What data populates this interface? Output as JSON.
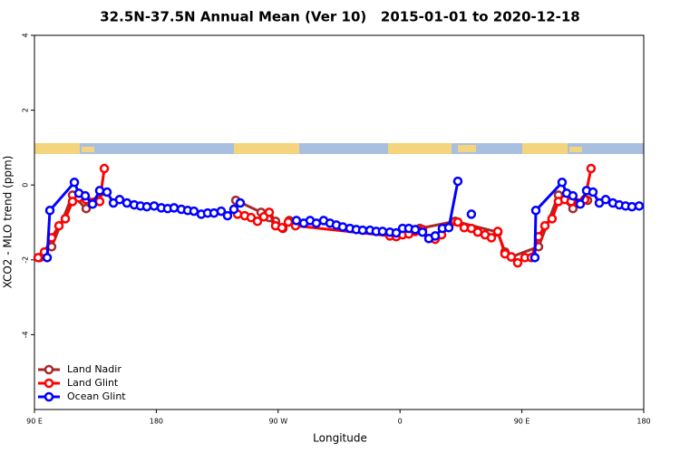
{
  "chart_data": {
    "type": "line",
    "title": "32.5N-37.5N Annual Mean (Ver 10)   2015-01-01 to 2020-12-18",
    "x_label": "Longitude",
    "y_label": "XCO2 - MLO trend (ppm)",
    "xlim": [
      90,
      540
    ],
    "ylim": [
      -6,
      4
    ],
    "xticks": [
      {
        "value": 90,
        "label": "90 E"
      },
      {
        "value": 180,
        "label": "180"
      },
      {
        "value": 270,
        "label": "90 W"
      },
      {
        "value": 360,
        "label": "0"
      },
      {
        "value": 450,
        "label": "90 E"
      },
      {
        "value": 540,
        "label": "180"
      }
    ],
    "yticks": [
      4,
      2,
      0,
      -2,
      -4
    ],
    "legend": "bottomleft",
    "series": [
      {
        "name": "Land Nadir",
        "color": "#a52a2a",
        "x": [
          94.0,
          102.7,
          118.1,
          128.2,
          138.9,
          null,
          238.7,
          257.4,
          263.4,
          268.1,
          273.5,
          278.2,
          null,
          374.6,
          400.7,
          432.2,
          437.5,
          442.2,
          462.3,
          477.0,
          487.7,
          498.5
        ],
        "values": [
          -1.94,
          -1.65,
          -0.27,
          -0.63,
          -0.19,
          null,
          -0.41,
          -0.73,
          -0.87,
          -0.97,
          -1.16,
          -0.95,
          null,
          -1.16,
          -0.97,
          -1.26,
          -1.79,
          -1.92,
          -1.65,
          -0.27,
          -0.63,
          -0.41
        ]
      },
      {
        "name": "Land Glint",
        "color": "#ff0000",
        "x": [
          92.7,
          97.4,
          102.7,
          108.1,
          112.8,
          118.1,
          122.8,
          128.2,
          133.5,
          138.2,
          141.6,
          null,
          240.0,
          245.3,
          250.0,
          254.7,
          259.4,
          263.4,
          268.1,
          272.8,
          277.5,
          282.8,
          352.5,
          357.2,
          361.9,
          366.5,
          371.2,
          376.6,
          381.3,
          386.0,
          390.7,
          396.0,
          402.7,
          407.4,
          412.7,
          417.4,
          422.8,
          427.5,
          432.2,
          437.5,
          442.2,
          446.9,
          452.3,
          457.0,
          462.3,
          467.0,
          472.3,
          477.0,
          481.7,
          486.4,
          491.8,
          496.4,
          501.1
        ],
        "values": [
          -1.94,
          -1.79,
          -1.41,
          -1.09,
          -0.9,
          -0.44,
          -0.34,
          -0.39,
          -0.46,
          -0.44,
          0.44,
          null,
          -0.78,
          -0.82,
          -0.87,
          -0.97,
          -0.85,
          -0.73,
          -1.09,
          -1.14,
          -0.99,
          -1.09,
          -1.36,
          -1.38,
          -1.33,
          -1.31,
          -1.24,
          -1.19,
          -1.43,
          -1.45,
          -1.33,
          -1.12,
          -0.99,
          -1.14,
          -1.16,
          -1.26,
          -1.33,
          -1.41,
          -1.24,
          -1.84,
          -1.92,
          -2.08,
          -1.94,
          -1.94,
          -1.38,
          -1.09,
          -0.9,
          -0.44,
          -0.39,
          -0.44,
          -0.48,
          -0.39,
          0.44
        ]
      },
      {
        "name": "Ocean Glint",
        "color": "#0000ff",
        "x": [
          99.4,
          101.4,
          119.5,
          122.8,
          127.5,
          132.9,
          138.2,
          143.6,
          148.3,
          152.9,
          158.3,
          163.7,
          168.3,
          173.0,
          178.4,
          183.7,
          188.4,
          193.1,
          198.5,
          203.2,
          207.8,
          213.2,
          217.9,
          222.6,
          227.9,
          232.6,
          237.3,
          242.0,
          null,
          283.5,
          288.9,
          293.6,
          298.2,
          303.6,
          308.3,
          313.0,
          317.7,
          323.0,
          327.7,
          332.4,
          337.8,
          342.4,
          347.1,
          352.5,
          357.2,
          361.9,
          366.5,
          371.2,
          376.6,
          381.3,
          386.0,
          391.3,
          396.0,
          402.7,
          null,
          412.7,
          null,
          459.6,
          460.3,
          479.7,
          483.1,
          487.7,
          493.1,
          497.8,
          502.5,
          507.2,
          511.9,
          517.2,
          521.9,
          526.6,
          531.3,
          536.6
        ],
        "values": [
          -1.94,
          -0.68,
          0.07,
          -0.22,
          -0.29,
          -0.51,
          -0.15,
          -0.19,
          -0.48,
          -0.39,
          -0.48,
          -0.53,
          -0.56,
          -0.58,
          -0.56,
          -0.61,
          -0.63,
          -0.61,
          -0.65,
          -0.68,
          -0.7,
          -0.78,
          -0.75,
          -0.75,
          -0.7,
          -0.82,
          -0.65,
          -0.48,
          null,
          -0.95,
          -1.02,
          -0.95,
          -1.02,
          -0.95,
          -1.02,
          -1.07,
          -1.12,
          -1.16,
          -1.19,
          -1.21,
          -1.21,
          -1.24,
          -1.24,
          -1.26,
          -1.28,
          -1.16,
          -1.16,
          -1.19,
          -1.26,
          -1.43,
          -1.36,
          -1.16,
          -1.14,
          0.1,
          null,
          -0.78,
          null,
          -1.94,
          -0.68,
          0.07,
          -0.22,
          -0.29,
          -0.51,
          -0.15,
          -0.19,
          -0.48,
          -0.39,
          -0.48,
          -0.53,
          -0.56,
          -0.58,
          -0.56
        ]
      }
    ]
  }
}
